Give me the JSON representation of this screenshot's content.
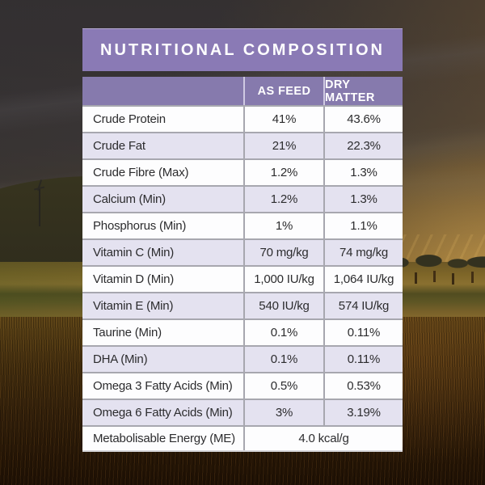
{
  "header": {
    "title": "NUTRITIONAL COMPOSITION"
  },
  "table": {
    "columns": {
      "as_feed": "AS FEED",
      "dry_matter": "DRY MATTER"
    },
    "rows": [
      {
        "label": "Crude Protein",
        "as_feed": "41%",
        "dry_matter": "43.6%"
      },
      {
        "label": "Crude Fat",
        "as_feed": "21%",
        "dry_matter": "22.3%"
      },
      {
        "label": "Crude Fibre (Max)",
        "as_feed": "1.2%",
        "dry_matter": "1.3%"
      },
      {
        "label": "Calcium (Min)",
        "as_feed": "1.2%",
        "dry_matter": "1.3%"
      },
      {
        "label": "Phosphorus (Min)",
        "as_feed": "1%",
        "dry_matter": "1.1%"
      },
      {
        "label": "Vitamin C (Min)",
        "as_feed": "70 mg/kg",
        "dry_matter": "74 mg/kg"
      },
      {
        "label": "Vitamin D (Min)",
        "as_feed": "1,000 IU/kg",
        "dry_matter": "1,064 IU/kg"
      },
      {
        "label": "Vitamin E (Min)",
        "as_feed": "540 IU/kg",
        "dry_matter": "574 IU/kg"
      },
      {
        "label": "Taurine (Min)",
        "as_feed": "0.1%",
        "dry_matter": "0.11%"
      },
      {
        "label": "DHA (Min)",
        "as_feed": "0.1%",
        "dry_matter": "0.11%"
      },
      {
        "label": "Omega 3 Fatty Acids (Min)",
        "as_feed": "0.5%",
        "dry_matter": "0.53%"
      },
      {
        "label": "Omega 6 Fatty Acids (Min)",
        "as_feed": "3%",
        "dry_matter": "3.19%"
      }
    ],
    "merged_row": {
      "label": "Metabolisable Energy (ME)",
      "value": "4.0 kcal/g"
    }
  },
  "colors": {
    "banner_purple": "#8a7ab5",
    "header_purple": "#867aad",
    "row_lavender": "#e4e2f0",
    "row_white": "#fdfdfe",
    "border_gray": "#a7a7af",
    "text_dark": "#2c2c2e",
    "title_text": "#ffffff"
  }
}
